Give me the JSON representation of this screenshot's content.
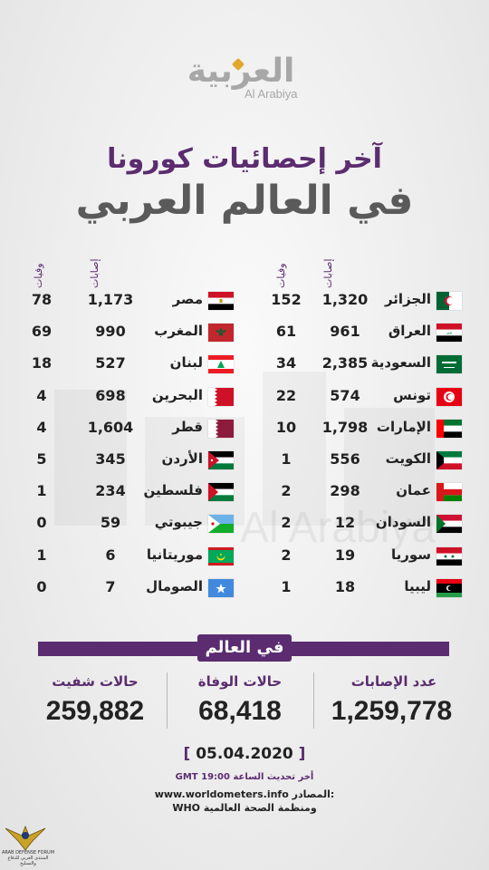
{
  "brand": {
    "arabic": "العربية",
    "english": "Al Arabiya"
  },
  "title": {
    "line1": "آخر إحصائيات كورونا",
    "line2": "في العالم العربي"
  },
  "columns": {
    "cases": "إصابات",
    "deaths": "وفيات"
  },
  "right_countries": [
    {
      "name": "الجزائر",
      "cases": "1,320",
      "deaths": "152",
      "flag": "algeria"
    },
    {
      "name": "العراق",
      "cases": "961",
      "deaths": "61",
      "flag": "iraq"
    },
    {
      "name": "السعودية",
      "cases": "2,385",
      "deaths": "34",
      "flag": "saudi"
    },
    {
      "name": "تونس",
      "cases": "574",
      "deaths": "22",
      "flag": "tunisia"
    },
    {
      "name": "الإمارات",
      "cases": "1,798",
      "deaths": "10",
      "flag": "uae"
    },
    {
      "name": "الكويت",
      "cases": "556",
      "deaths": "1",
      "flag": "kuwait"
    },
    {
      "name": "عمان",
      "cases": "298",
      "deaths": "2",
      "flag": "oman"
    },
    {
      "name": "السودان",
      "cases": "12",
      "deaths": "2",
      "flag": "sudan"
    },
    {
      "name": "سوريا",
      "cases": "19",
      "deaths": "2",
      "flag": "syria"
    },
    {
      "name": "ليبيا",
      "cases": "18",
      "deaths": "1",
      "flag": "libya"
    }
  ],
  "left_countries": [
    {
      "name": "مصر",
      "cases": "1,173",
      "deaths": "78",
      "flag": "egypt"
    },
    {
      "name": "المغرب",
      "cases": "990",
      "deaths": "69",
      "flag": "morocco"
    },
    {
      "name": "لبنان",
      "cases": "527",
      "deaths": "18",
      "flag": "lebanon"
    },
    {
      "name": "البحرين",
      "cases": "698",
      "deaths": "4",
      "flag": "bahrain"
    },
    {
      "name": "قطر",
      "cases": "1,604",
      "deaths": "4",
      "flag": "qatar"
    },
    {
      "name": "الأردن",
      "cases": "345",
      "deaths": "5",
      "flag": "jordan"
    },
    {
      "name": "فلسطين",
      "cases": "234",
      "deaths": "1",
      "flag": "palestine"
    },
    {
      "name": "جيبوتي",
      "cases": "59",
      "deaths": "0",
      "flag": "djibouti"
    },
    {
      "name": "موريتانيا",
      "cases": "6",
      "deaths": "1",
      "flag": "mauritania"
    },
    {
      "name": "الصومال",
      "cases": "7",
      "deaths": "0",
      "flag": "somalia"
    }
  ],
  "world": {
    "label": "في العالم",
    "cases_label": "عدد الإصابات",
    "cases_value": "1,259,778",
    "deaths_label": "حالات الوفاة",
    "deaths_value": "68,418",
    "recovered_label": "حالات شفيت",
    "recovered_value": "259,882"
  },
  "date": "05.04.2020",
  "update_text": "أخر تحديث الساعة 19:00 GMT",
  "sources": {
    "label": "المصادر:",
    "site": "www.worldometers.info",
    "who": "ومنظمة الصحة العالمية WHO"
  },
  "forum": {
    "title": "ARAB DEFENSE FORUM",
    "subtitle": "المنتدى العربي للدفاع والتسليح"
  },
  "colors": {
    "purple": "#5b2c6f",
    "gray": "#5a5a5a",
    "brand_gray": "#a7a7a7",
    "accent": "#e1a82b"
  }
}
